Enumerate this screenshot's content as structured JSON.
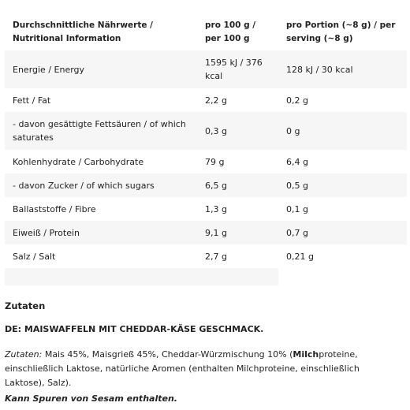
{
  "table": {
    "header": [
      "Durchschnittliche Nährwerte / Nutritional Information",
      "pro 100 g / per 100 g",
      "pro Portion (~8 g) / per serving (~8 g)"
    ],
    "rows": [
      [
        "Energie / Energy",
        "1595 kJ / 376 kcal",
        "128 kJ / 30 kcal"
      ],
      [
        "Fett / Fat",
        "2,2 g",
        "0,2 g"
      ],
      [
        "- davon gesättigte Fettsäuren / of which saturates",
        "0,3 g",
        "0 g"
      ],
      [
        "Kohlenhydrate / Carbohydrate",
        "79 g",
        "6,4 g"
      ],
      [
        "- davon Zucker / of which sugars",
        "6,5 g",
        "0,5 g"
      ],
      [
        "Ballaststoffe / Fibre",
        "1,3 g",
        "0,1 g"
      ],
      [
        "Eiweiß / Protein",
        "9,1 g",
        "0,7 g"
      ],
      [
        "Salz / Salt",
        "2,7 g",
        "0,21 g"
      ]
    ]
  },
  "ingredients": {
    "title": "Zutaten",
    "product": "DE: MAISWAFFELN MIT CHEDDAR-KÄSE GESCHMACK.",
    "label": "Zutaten:",
    "text_before": " Mais 45%, Maisgrieß 45%, Cheddar-Würzmischung 10% (",
    "allergen": "Milch",
    "text_after": "proteine, einschließlich Laktose, natürliche Aromen (enthalten Milchproteine, einschließlich Laktose), Salz).",
    "note": "Kann Spuren von Sesam enthalten."
  }
}
